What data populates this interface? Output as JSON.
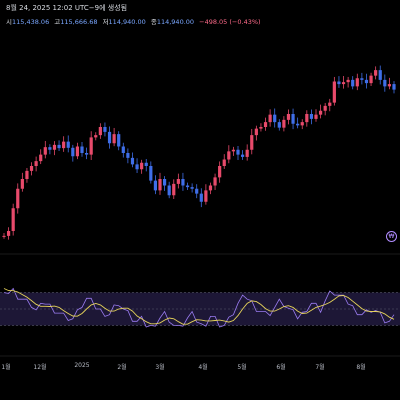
{
  "header": {
    "title": "8월 24, 2025 12:02 UTC−9에 생성됨",
    "open_label": "시",
    "open_value": "115,438.06",
    "high_label": "고",
    "high_value": "115,666.68",
    "low_label": "저",
    "low_value": "114,940.00",
    "close_label": "종",
    "close_value": "114,940.00",
    "change": "−498.05 (−0.43%)"
  },
  "x_axis": {
    "labels": [
      "1월",
      "12월",
      "2025",
      "2월",
      "3월",
      "4월",
      "5월",
      "6월",
      "7월",
      "8월"
    ]
  },
  "icons": {
    "indicator_marker": "dollar-circle-icon",
    "indicator_symbol": "₩"
  },
  "colors": {
    "up_candle": "#e84a6b",
    "down_candle": "#3f6ee8",
    "rsi_line": "#9b7cf2",
    "rsi_ma": "#e6d35a",
    "rsi_band": "#1d1736"
  },
  "chart_data": [
    {
      "type": "line",
      "series": [
        {
          "values": [
            70500,
            72000,
            79000,
            85000,
            88000,
            90500,
            92000,
            93500,
            95500,
            97800,
            97000,
            98500,
            97500,
            99500,
            97600,
            95000,
            98000,
            96000,
            95500,
            100800,
            101500,
            104000,
            102500,
            99000,
            101800,
            98000,
            96000,
            94500,
            92500,
            91000,
            93000,
            92000,
            87500,
            84500,
            88000,
            86000,
            83000,
            86500,
            88000,
            86000,
            85500,
            85000,
            83500,
            81000,
            84500,
            86000,
            88500,
            92000,
            94000,
            96500,
            97000,
            95500,
            94800,
            97000,
            101500,
            103500,
            104000,
            105500,
            107800,
            105500,
            103800,
            106200,
            108000,
            105000,
            104500,
            105500,
            108000,
            106500,
            107800,
            109000,
            110500,
            111500,
            118000,
            117200,
            117800,
            118500,
            116500,
            119000,
            118500,
            117500,
            119800,
            121500,
            118500,
            116500,
            117200,
            115500
          ]
        }
      ]
    },
    {
      "type": "line",
      "series": [
        {
          "values": [
            75,
            70,
            72,
            66,
            62,
            58,
            55,
            48,
            52,
            58,
            54,
            50,
            46,
            42,
            40,
            38,
            45,
            55,
            62,
            58,
            52,
            48,
            46,
            44,
            52,
            58,
            50,
            44,
            38,
            34,
            36,
            30,
            28,
            34,
            40,
            44,
            38,
            30,
            26,
            32,
            38,
            42,
            36,
            30,
            34,
            42,
            38,
            32,
            30,
            36,
            46,
            56,
            62,
            64,
            58,
            52,
            48,
            44,
            46,
            52,
            58,
            56,
            50,
            44,
            40,
            44,
            52,
            58,
            54,
            50,
            60,
            68,
            70,
            66,
            62,
            58,
            52,
            48,
            44,
            46,
            50,
            48,
            42,
            36,
            34,
            38
          ]
        }
      ]
    }
  ]
}
